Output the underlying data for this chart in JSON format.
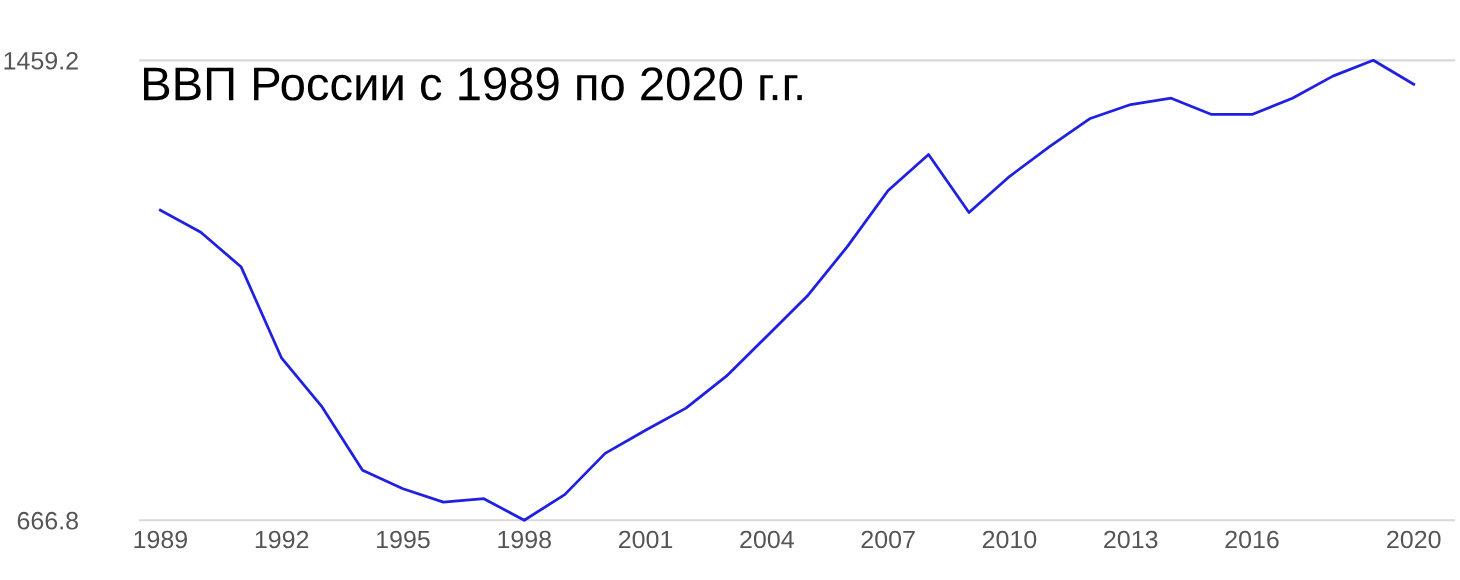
{
  "chart_data": {
    "type": "line",
    "title": "ВВП России с 1989 по 2020 г.г.",
    "x": [
      1989,
      1990,
      1991,
      1992,
      1993,
      1994,
      1995,
      1996,
      1997,
      1998,
      1999,
      2000,
      2001,
      2002,
      2003,
      2004,
      2005,
      2006,
      2007,
      2008,
      2009,
      2010,
      2011,
      2012,
      2013,
      2014,
      2015,
      2016,
      2017,
      2018,
      2019,
      2020
    ],
    "series": [
      {
        "color": "#2020e0",
        "values": [
          1201,
          1163,
          1103,
          946,
          862,
          753,
          721,
          698,
          704,
          666.8,
          711,
          782,
          822,
          860,
          915,
          984,
          1053,
          1139,
          1235,
          1297,
          1197,
          1259,
          1311,
          1359,
          1383,
          1394,
          1366,
          1366,
          1394,
          1432,
          1459.2,
          1418
        ]
      }
    ],
    "xlim": [
      1988.5,
      2021
    ],
    "xticks": [
      1989,
      1992,
      1995,
      1998,
      2001,
      2004,
      2007,
      2010,
      2013,
      2016,
      2020
    ],
    "ylim": [
      666.8,
      1459.2
    ],
    "yticks": [
      666.8,
      1459.2
    ],
    "marker": "none",
    "line_style": "solid"
  }
}
